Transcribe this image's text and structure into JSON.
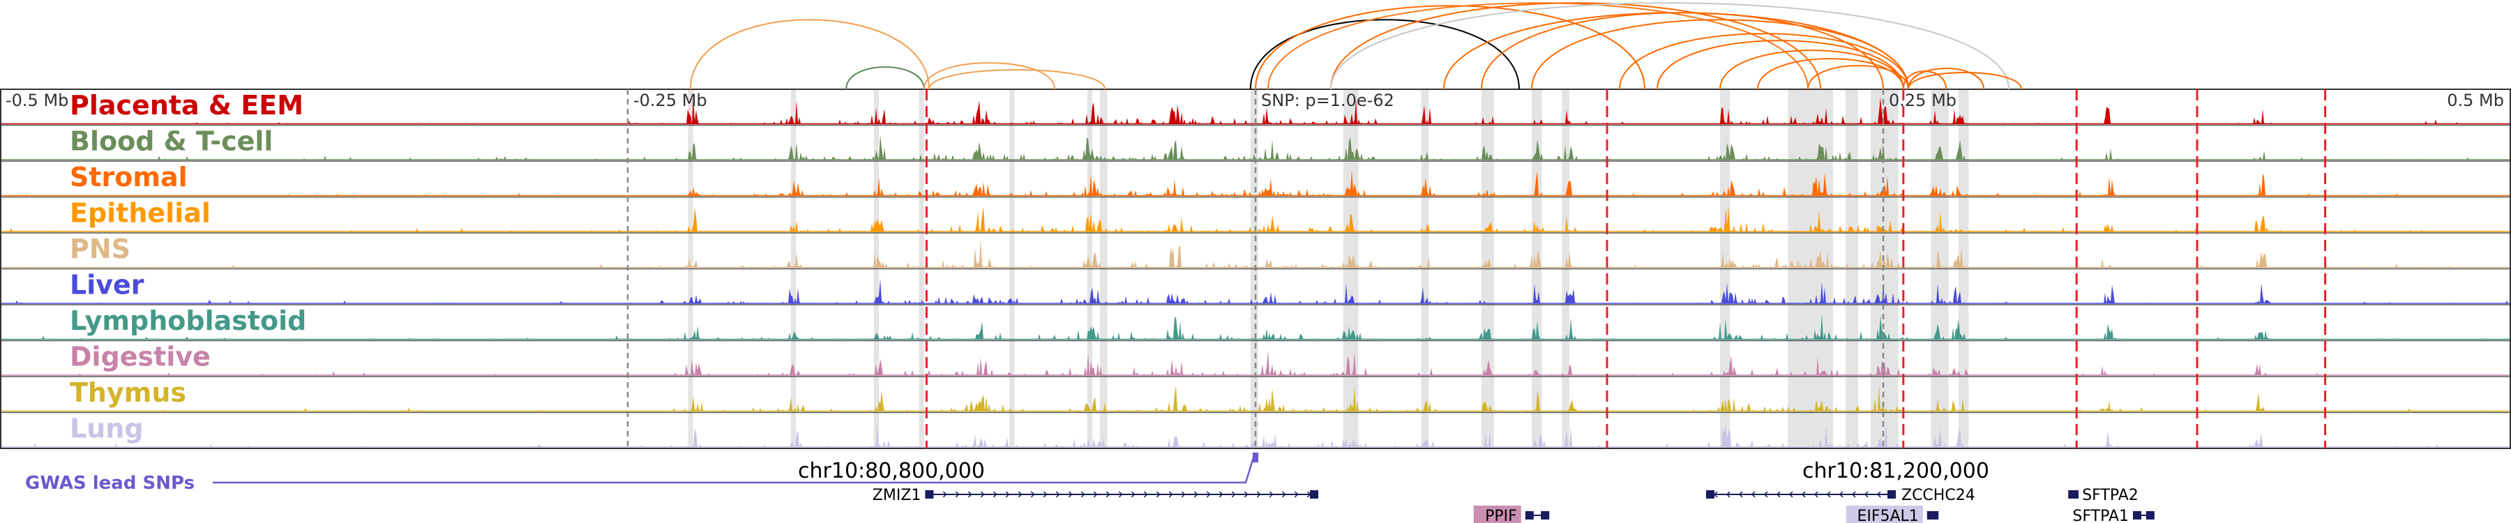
{
  "chart_data": {
    "type": "area",
    "title": "",
    "region": {
      "start": 80900000,
      "end": 81900000,
      "chrom": "chr10"
    },
    "axis_ticks": [
      {
        "label": "-0.5 Mb",
        "pos": 80900000
      },
      {
        "label": "-0.25 Mb",
        "pos": 81150000
      },
      {
        "label": "0.25 Mb",
        "pos": 81650000
      },
      {
        "label": "0.5 Mb",
        "pos": 81900000
      }
    ],
    "snp": {
      "label": "SNP: p=1.0e-62",
      "pos": 81400000
    },
    "coordinate_labels": [
      {
        "label": "chr10:80,800,000",
        "pos": 81255000
      },
      {
        "label": "chr10:81,200,000",
        "pos": 81655000
      }
    ],
    "gwas_label": "GWAS lead SNPs",
    "tracks": [
      {
        "name": "Placenta & EEM",
        "color": "#cc0000",
        "seed": 11
      },
      {
        "name": "Blood & T-cell",
        "color": "#6b8e5a",
        "seed": 23
      },
      {
        "name": "Stromal",
        "color": "#ff6a00",
        "seed": 37
      },
      {
        "name": "Epithelial",
        "color": "#ff9900",
        "seed": 41
      },
      {
        "name": "PNS",
        "color": "#deb887",
        "seed": 53
      },
      {
        "name": "Liver",
        "color": "#4b4bdb",
        "seed": 67
      },
      {
        "name": "Lymphoblastoid",
        "color": "#449988",
        "seed": 71
      },
      {
        "name": "Digestive",
        "color": "#c783a8",
        "seed": 83
      },
      {
        "name": "Thymus",
        "color": "#d4b52a",
        "seed": 97
      },
      {
        "name": "Lung",
        "color": "#c8c4e6",
        "seed": 101
      }
    ],
    "red_dashed_lines": [
      81269000,
      81540000,
      81658000,
      81727000,
      81775000,
      81826000
    ],
    "gray_dashed_lines": [
      81150000,
      81400000,
      81650000
    ],
    "highlight_regions": [
      [
        81174000,
        81176000
      ],
      [
        81215000,
        81217000
      ],
      [
        81248000,
        81250000
      ],
      [
        81266000,
        81268000
      ],
      [
        81302000,
        81304000
      ],
      [
        81333000,
        81335000
      ],
      [
        81338000,
        81341000
      ],
      [
        81398000,
        81401000
      ],
      [
        81435000,
        81441000
      ],
      [
        81466000,
        81469000
      ],
      [
        81490000,
        81495000
      ],
      [
        81510000,
        81514000
      ],
      [
        81522000,
        81525000
      ],
      [
        81585000,
        81589000
      ],
      [
        81612000,
        81630000
      ],
      [
        81635000,
        81640000
      ],
      [
        81645000,
        81656000
      ],
      [
        81669000,
        81676000
      ],
      [
        81680000,
        81684000
      ]
    ],
    "arcs": [
      {
        "from": 81175000,
        "to": 81270000,
        "color": "#f0a050",
        "height": 100
      },
      {
        "from": 81237000,
        "to": 81268000,
        "color": "#5a8a5a",
        "height": 32
      },
      {
        "from": 81268000,
        "to": 81320000,
        "color": "#f0a050",
        "height": 38
      },
      {
        "from": 81270000,
        "to": 81340000,
        "color": "#f0a050",
        "height": 28
      },
      {
        "from": 81398000,
        "to": 81505000,
        "color": "#000000",
        "height": 100
      },
      {
        "from": 81400000,
        "to": 81555000,
        "color": "#ff6a00",
        "height": 120
      },
      {
        "from": 81405000,
        "to": 81620000,
        "color": "#ff7b1c",
        "height": 140
      },
      {
        "from": 81430000,
        "to": 81625000,
        "color": "#ff6a00",
        "height": 130
      },
      {
        "from": 81430000,
        "to": 81700000,
        "color": "#c8c8c8",
        "height": 150
      },
      {
        "from": 81475000,
        "to": 81660000,
        "color": "#ff6a00",
        "height": 110
      },
      {
        "from": 81490000,
        "to": 81650000,
        "color": "#ff6a00",
        "height": 110
      },
      {
        "from": 81510000,
        "to": 81660000,
        "color": "#ff6a00",
        "height": 100
      },
      {
        "from": 81545000,
        "to": 81660000,
        "color": "#ff6a00",
        "height": 80
      },
      {
        "from": 81560000,
        "to": 81658000,
        "color": "#ff6a00",
        "height": 70
      },
      {
        "from": 81585000,
        "to": 81658000,
        "color": "#ff6a00",
        "height": 56
      },
      {
        "from": 81600000,
        "to": 81658000,
        "color": "#ff6a00",
        "height": 44
      },
      {
        "from": 81620000,
        "to": 81660000,
        "color": "#ff6a00",
        "height": 34
      },
      {
        "from": 81658000,
        "to": 81675000,
        "color": "#ff6a00",
        "height": 26
      },
      {
        "from": 81660000,
        "to": 81690000,
        "color": "#ff6a00",
        "height": 30
      },
      {
        "from": 81660000,
        "to": 81705000,
        "color": "#ff6a00",
        "height": 24
      }
    ],
    "genes": [
      {
        "name": "ZMIZ1",
        "start": 81269000,
        "end": 81425000,
        "row": 0,
        "strand": "+",
        "label_side": "left",
        "color": "#000000"
      },
      {
        "name": "PPIF",
        "start": 81508000,
        "end": 81517000,
        "row": 1,
        "strand": "+",
        "label_side": "left",
        "color": "#c783a8",
        "badge": true
      },
      {
        "name": "ZCCHC24",
        "start": 81580000,
        "end": 81655000,
        "row": 0,
        "strand": "-",
        "label_side": "right",
        "color": "#000000"
      },
      {
        "name": "EIF5AL1",
        "start": 81668000,
        "end": 81672000,
        "row": 1,
        "strand": "+",
        "label_side": "left",
        "color": "#c8c4e6",
        "badge": true
      },
      {
        "name": "SFTPA2",
        "start": 81725000,
        "end": 81727000,
        "row": 0,
        "strand": "-",
        "label_side": "right",
        "color": "#000000"
      },
      {
        "name": "SFTPA1",
        "start": 81750000,
        "end": 81758000,
        "row": 1,
        "strand": "+",
        "label_side": "left",
        "color": "#000000"
      }
    ]
  }
}
